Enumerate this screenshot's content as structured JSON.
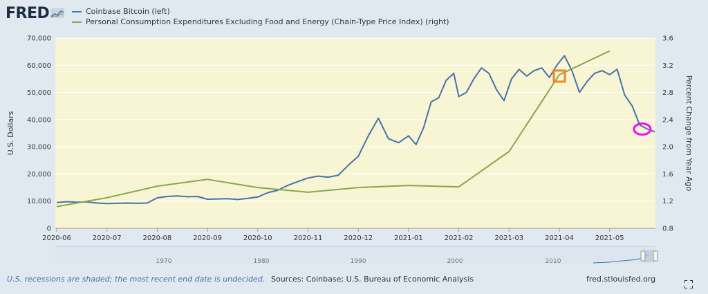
{
  "logo": {
    "text": "FRED"
  },
  "legend": [
    {
      "label": "Coinbase Bitcoin (left)",
      "color": "#4572a7"
    },
    {
      "label": "Personal Consumption Expenditures Excluding Food and Energy (Chain-Type Price Index) (right)",
      "color": "#89a54e"
    }
  ],
  "footer": {
    "note": "U.S. recessions are shaded; the most recent end date is undecided.",
    "sources": "Sources: Coinbase; U.S. Bureau of Economic Analysis",
    "url": "fred.stlouisfed.org"
  },
  "chart_data": {
    "type": "line",
    "background": "#f7f5d4",
    "left_axis": {
      "label": "U.S. Dollars",
      "ylim": [
        0,
        70000
      ],
      "ticks": [
        0,
        10000,
        20000,
        30000,
        40000,
        50000,
        60000,
        70000
      ],
      "tick_labels": [
        "0",
        "10,000",
        "20,000",
        "30,000",
        "40,000",
        "50,000",
        "60,000",
        "70,000"
      ]
    },
    "right_axis": {
      "label": "Percent Change from Year Ago",
      "ylim": [
        0.8,
        3.6
      ],
      "ticks": [
        0.8,
        1.2,
        1.6,
        2.0,
        2.4,
        2.8,
        3.2,
        3.6
      ],
      "tick_labels": [
        "0.8",
        "1.2",
        "1.6",
        "2.0",
        "2.4",
        "2.8",
        "3.2",
        "3.6"
      ]
    },
    "x_axis": {
      "categories": [
        "2020-06",
        "2020-07",
        "2020-08",
        "2020-09",
        "2020-10",
        "2020-11",
        "2020-12",
        "2021-01",
        "2021-02",
        "2021-03",
        "2021-04",
        "2021-05"
      ]
    },
    "series": [
      {
        "name": "Coinbase Bitcoin (left)",
        "axis": "left",
        "color": "#4572a7",
        "x": [
          0,
          0.2,
          0.4,
          0.6,
          0.8,
          1.0,
          1.2,
          1.4,
          1.6,
          1.8,
          2.0,
          2.2,
          2.4,
          2.6,
          2.8,
          3.0,
          3.2,
          3.4,
          3.6,
          3.8,
          4.0,
          4.2,
          4.4,
          4.6,
          4.8,
          5.0,
          5.2,
          5.4,
          5.6,
          5.8,
          6.0,
          6.2,
          6.4,
          6.6,
          6.8,
          7.0,
          7.15,
          7.3,
          7.45,
          7.6,
          7.75,
          7.9,
          8.0,
          8.15,
          8.3,
          8.45,
          8.6,
          8.75,
          8.9,
          9.05,
          9.2,
          9.35,
          9.5,
          9.65,
          9.8,
          9.95,
          10.1,
          10.25,
          10.4,
          10.55,
          10.7,
          10.85,
          11.0,
          11.15,
          11.3,
          11.45,
          11.6,
          11.75,
          11.9
        ],
        "values": [
          9500,
          9800,
          9600,
          9700,
          9300,
          9100,
          9200,
          9300,
          9200,
          9300,
          11200,
          11700,
          11900,
          11600,
          11700,
          10700,
          10800,
          10900,
          10600,
          11000,
          11500,
          13100,
          14000,
          15800,
          17200,
          18500,
          19200,
          18800,
          19500,
          23200,
          26500,
          34000,
          40500,
          33000,
          31500,
          34000,
          30800,
          37000,
          46500,
          48000,
          54500,
          57000,
          48500,
          50000,
          55000,
          59000,
          57000,
          51000,
          47000,
          55000,
          58500,
          56000,
          58000,
          59000,
          55500,
          60000,
          63500,
          58000,
          50000,
          54000,
          57000,
          58000,
          56500,
          58500,
          49000,
          45000,
          38000,
          36500,
          35500
        ]
      },
      {
        "name": "Personal Consumption Expenditures Excluding Food and Energy (Chain-Type Price Index) (right)",
        "axis": "right",
        "color": "#89a54e",
        "x": [
          0,
          1.0,
          2.0,
          3.0,
          4.0,
          5.0,
          6.0,
          7.0,
          8.0,
          9.0,
          10.0,
          11.0
        ],
        "values": [
          1.12,
          1.25,
          1.42,
          1.52,
          1.4,
          1.33,
          1.4,
          1.43,
          1.41,
          1.93,
          3.06,
          3.41
        ]
      }
    ],
    "navigator_labels": [
      "1970",
      "1980",
      "1990",
      "2000",
      "2010"
    ],
    "annotations": [
      {
        "shape": "square",
        "color": "#f58220",
        "at_x": 10.0,
        "at_left_value": 56000
      },
      {
        "shape": "ellipse",
        "color": "#ff00ff",
        "at_x": 11.65,
        "at_left_value": 36500
      }
    ]
  }
}
